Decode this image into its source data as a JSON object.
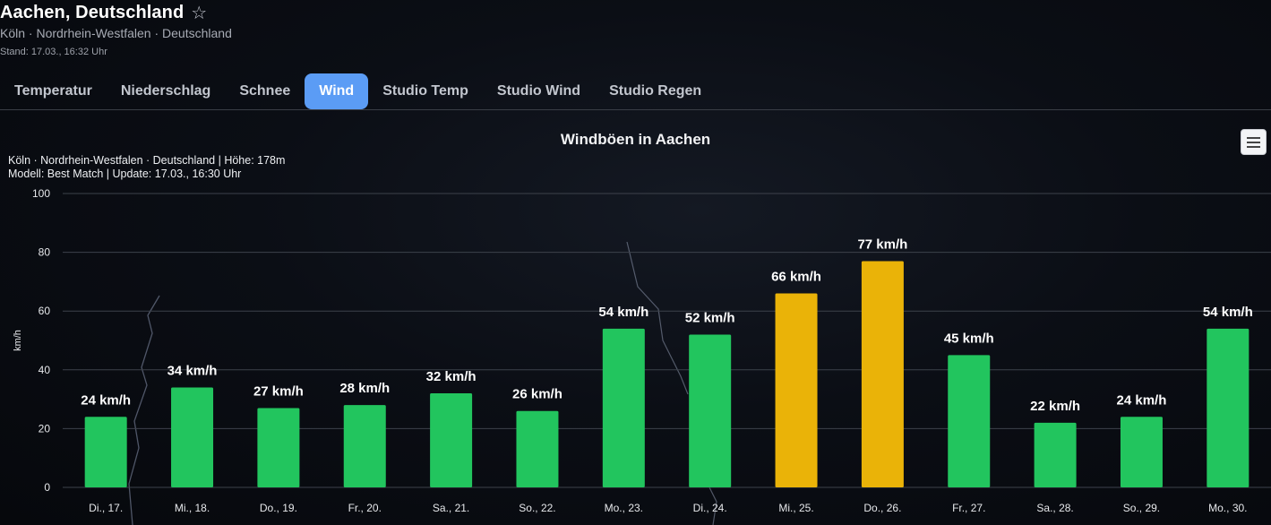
{
  "header": {
    "title": "Aachen, Deutschland",
    "star_icon": "☆",
    "subtitle": "Köln · Nordrhein-Westfalen · Deutschland",
    "stand": "Stand: 17.03., 16:32 Uhr"
  },
  "tabs": [
    {
      "label": "Temperatur",
      "active": false
    },
    {
      "label": "Niederschlag",
      "active": false
    },
    {
      "label": "Schnee",
      "active": false
    },
    {
      "label": "Wind",
      "active": true
    },
    {
      "label": "Studio Temp",
      "active": false
    },
    {
      "label": "Studio Wind",
      "active": false
    },
    {
      "label": "Studio Regen",
      "active": false
    }
  ],
  "colors": {
    "normal": "#22c55e",
    "warning": "#eab308",
    "accent": "#5b9cf5"
  },
  "chart_data": {
    "type": "bar",
    "title": "Windböen in Aachen",
    "subtitle_lines": [
      "Köln · Nordrhein-Westfalen · Deutschland | Höhe: 178m",
      "Modell: Best Match | Update: 17.03., 16:30 Uhr"
    ],
    "ylabel": "km/h",
    "ylim": [
      0,
      100
    ],
    "yticks": [
      0,
      20,
      40,
      60,
      80,
      100
    ],
    "grid": true,
    "categories": [
      "Di., 17.",
      "Mi., 18.",
      "Do., 19.",
      "Fr., 20.",
      "Sa., 21.",
      "So., 22.",
      "Mo., 23.",
      "Di., 24.",
      "Mi., 25.",
      "Do., 26.",
      "Fr., 27.",
      "Sa., 28.",
      "So., 29.",
      "Mo., 30."
    ],
    "values": [
      24,
      34,
      27,
      28,
      32,
      26,
      54,
      52,
      66,
      77,
      45,
      22,
      24,
      54
    ],
    "data_labels": [
      "24 km/h",
      "34 km/h",
      "27 km/h",
      "28 km/h",
      "32 km/h",
      "26 km/h",
      "54 km/h",
      "52 km/h",
      "66 km/h",
      "77 km/h",
      "45 km/h",
      "22 km/h",
      "24 km/h",
      "54 km/h"
    ],
    "bar_colors": [
      "#22c55e",
      "#22c55e",
      "#22c55e",
      "#22c55e",
      "#22c55e",
      "#22c55e",
      "#22c55e",
      "#22c55e",
      "#eab308",
      "#eab308",
      "#22c55e",
      "#22c55e",
      "#22c55e",
      "#22c55e"
    ]
  },
  "menu_icon": "hamburger-menu-icon"
}
